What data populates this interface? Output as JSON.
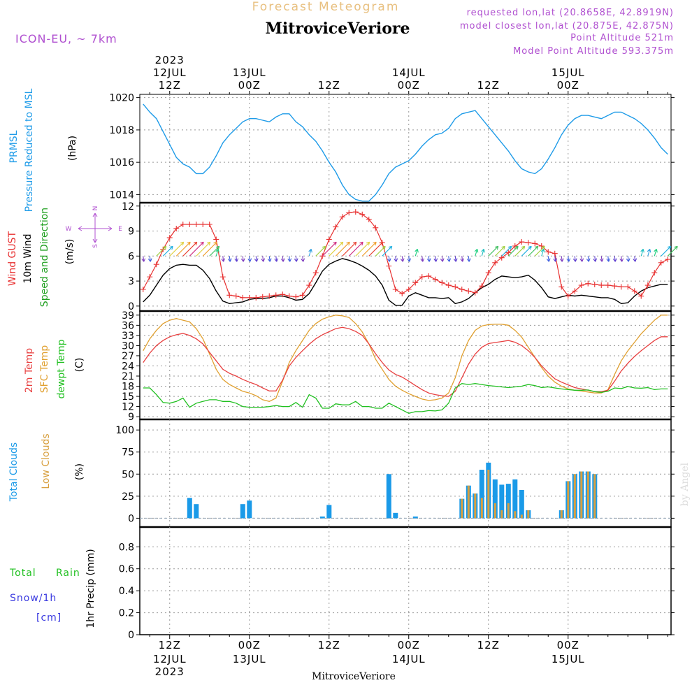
{
  "header": {
    "product": "Forecast Meteogram",
    "station": "MitroviceVeriore",
    "model": "ICON-EU, ~ 7km",
    "requested": "requested lon,lat (20.8658E, 42.8919N)",
    "closest": "model closest lon,lat (20.875E, 42.875N)",
    "altitude": "Point Altitude 521m",
    "model_altitude": "Model Point Altitude 593.375m",
    "credit": "by Angel",
    "footer_station": "MitroviceVeriore"
  },
  "time_axis": {
    "top_labels": [
      {
        "line1": "2023",
        "line2": "12JUL",
        "line3": "12Z",
        "t": 0
      },
      {
        "line1": "",
        "line2": "13JUL",
        "line3": "00Z",
        "t": 12
      },
      {
        "line1": "",
        "line2": "",
        "line3": "12Z",
        "t": 24
      },
      {
        "line1": "",
        "line2": "14JUL",
        "line3": "00Z",
        "t": 36
      },
      {
        "line1": "",
        "line2": "",
        "line3": "12Z",
        "t": 48
      },
      {
        "line1": "",
        "line2": "15JUL",
        "line3": "00Z",
        "t": 60
      }
    ],
    "bottom_labels": [
      {
        "line1": "12Z",
        "line2": "12JUL",
        "line3": "2023",
        "t": 0
      },
      {
        "line1": "00Z",
        "line2": "13JUL",
        "line3": "",
        "t": 12
      },
      {
        "line1": "12Z",
        "line2": "",
        "line3": "",
        "t": 24
      },
      {
        "line1": "00Z",
        "line2": "14JUL",
        "line3": "",
        "t": 36
      },
      {
        "line1": "12Z",
        "line2": "",
        "line3": "",
        "t": 48
      },
      {
        "line1": "00Z",
        "line2": "15JUL",
        "line3": "",
        "t": 60
      }
    ]
  },
  "labels": {
    "pressure": [
      "PRMSL",
      "Pressure Reduced to MSL"
    ],
    "pressure_unit": "(hPa)",
    "wind": [
      "Wind GUST",
      "10m Wind",
      "Speed and Direction"
    ],
    "wind_unit": "(m/s)",
    "compass": {
      "n": "N",
      "s": "S",
      "w": "W",
      "e": "E"
    },
    "temp": [
      "2m Temp",
      "SFC Temp",
      "dewpt Temp"
    ],
    "temp_unit": "(C)",
    "clouds": [
      "Total Clouds",
      "Low Clouds"
    ],
    "clouds_unit": "(%)",
    "precip_left": [
      "Total",
      "Rain",
      "Snow/1h",
      "[cm]"
    ],
    "precip_axis": "1hr Precip (mm)"
  },
  "colors": {
    "pressure": "#1e9be8",
    "gust": "#e83030",
    "wind": "#000000",
    "temp2m": "#e84040",
    "sfc": "#e0a030",
    "dewpt": "#20c020",
    "total_clouds": "#1a9ae8",
    "low_clouds": "#d8a040",
    "title": "#e8c080",
    "meta": "#b050d0",
    "snow": "#3a3ae0"
  },
  "chart_data": [
    {
      "type": "line",
      "name": "pressure",
      "ylim": [
        1013.5,
        1020.2
      ],
      "yticks": [
        1014,
        1016,
        1018,
        1020
      ],
      "x": [
        -4,
        -3,
        -2,
        -1,
        0,
        1,
        2,
        3,
        4,
        5,
        6,
        7,
        8,
        9,
        10,
        11,
        12,
        13,
        14,
        15,
        16,
        17,
        18,
        19,
        20,
        21,
        22,
        23,
        24,
        25,
        26,
        27,
        28,
        29,
        30,
        31,
        32,
        33,
        34,
        35,
        36,
        37,
        38,
        39,
        40,
        41,
        42,
        43,
        44,
        45,
        46,
        47,
        48,
        49,
        50,
        51,
        52,
        53,
        54,
        55,
        56,
        57,
        58,
        59,
        60,
        61,
        62,
        63,
        64,
        65,
        66,
        67,
        68,
        69,
        70,
        71,
        72,
        73,
        74,
        75
      ],
      "values": [
        1019.6,
        1019.1,
        1018.7,
        1017.9,
        1017.1,
        1016.3,
        1015.9,
        1015.7,
        1015.3,
        1015.3,
        1015.7,
        1016.4,
        1017.2,
        1017.7,
        1018.1,
        1018.5,
        1018.7,
        1018.7,
        1018.6,
        1018.5,
        1018.8,
        1019.0,
        1019.0,
        1018.5,
        1018.2,
        1017.7,
        1017.3,
        1016.7,
        1016.0,
        1015.4,
        1014.6,
        1014.0,
        1013.7,
        1013.6,
        1013.6,
        1014.0,
        1014.6,
        1015.3,
        1015.7,
        1015.9,
        1016.1,
        1016.5,
        1017.0,
        1017.4,
        1017.7,
        1017.8,
        1018.1,
        1018.7,
        1019.0,
        1019.1,
        1019.2,
        1018.7,
        1018.2,
        1017.7,
        1017.2,
        1016.7,
        1016.1,
        1015.6,
        1015.4,
        1015.3,
        1015.6,
        1016.2,
        1016.9,
        1017.7,
        1018.3,
        1018.7,
        1018.9,
        1018.9,
        1018.8,
        1018.7,
        1018.9,
        1019.1,
        1019.1,
        1018.9,
        1018.7,
        1018.4,
        1018.0,
        1017.5,
        1016.9,
        1016.5
      ]
    },
    {
      "type": "line",
      "name": "wind",
      "ylim": [
        -0.6,
        12.4
      ],
      "yticks": [
        0,
        3,
        6,
        9,
        12
      ],
      "x": [
        -4,
        -3,
        -2,
        -1,
        0,
        1,
        2,
        3,
        4,
        5,
        6,
        7,
        8,
        9,
        10,
        11,
        12,
        13,
        14,
        15,
        16,
        17,
        18,
        19,
        20,
        21,
        22,
        23,
        24,
        25,
        26,
        27,
        28,
        29,
        30,
        31,
        32,
        33,
        34,
        35,
        36,
        37,
        38,
        39,
        40,
        41,
        42,
        43,
        44,
        45,
        46,
        47,
        48,
        49,
        50,
        51,
        52,
        53,
        54,
        55,
        56,
        57,
        58,
        59,
        60,
        61,
        62,
        63,
        64,
        65,
        66,
        67,
        68,
        69,
        70,
        71,
        72,
        73,
        74,
        75
      ],
      "gust": [
        2.0,
        3.5,
        5.0,
        6.8,
        8.2,
        9.3,
        9.8,
        9.8,
        9.8,
        9.8,
        9.8,
        8.0,
        3.5,
        1.3,
        1.2,
        1.0,
        1.0,
        1.0,
        1.1,
        1.2,
        1.3,
        1.4,
        1.2,
        1.1,
        1.3,
        2.5,
        4.0,
        6.0,
        8.0,
        9.5,
        10.7,
        11.2,
        11.3,
        11.0,
        10.4,
        9.4,
        7.6,
        4.8,
        2.0,
        1.5,
        2.0,
        2.8,
        3.5,
        3.6,
        3.2,
        2.8,
        2.5,
        2.3,
        2.0,
        1.8,
        1.6,
        2.4,
        4.0,
        5.2,
        5.8,
        6.4,
        7.2,
        7.7,
        7.6,
        7.5,
        7.2,
        6.5,
        6.3,
        2.3,
        1.2,
        1.8,
        2.5,
        2.7,
        2.6,
        2.5,
        2.5,
        2.4,
        2.3,
        2.3,
        1.8,
        1.2,
        2.5,
        4.0,
        5.2,
        5.6
      ],
      "values": [
        0.5,
        1.3,
        2.5,
        3.7,
        4.5,
        4.9,
        5.0,
        4.9,
        4.9,
        4.3,
        3.3,
        1.8,
        0.6,
        0.3,
        0.4,
        0.5,
        0.8,
        0.9,
        0.9,
        1.0,
        1.2,
        1.2,
        1.0,
        0.7,
        0.8,
        1.5,
        2.8,
        4.2,
        5.0,
        5.4,
        5.7,
        5.5,
        5.2,
        4.8,
        4.3,
        3.6,
        2.5,
        0.7,
        0.1,
        0.1,
        1.2,
        1.6,
        1.3,
        1.0,
        1.0,
        0.9,
        1.0,
        0.3,
        0.5,
        0.9,
        1.6,
        2.2,
        2.6,
        3.2,
        3.6,
        3.5,
        3.4,
        3.5,
        3.7,
        3.1,
        2.2,
        1.1,
        0.9,
        1.1,
        1.3,
        1.2,
        1.3,
        1.2,
        1.1,
        1.0,
        1.0,
        0.8,
        0.3,
        0.4,
        1.2,
        1.8,
        2.2,
        2.4,
        2.6,
        2.6
      ]
    },
    {
      "type": "line",
      "name": "temperature",
      "ylim": [
        8.2,
        40.2
      ],
      "yticks": [
        9,
        12,
        15,
        18,
        21,
        24,
        27,
        30,
        33,
        36,
        39
      ],
      "x": [
        -4,
        -3,
        -2,
        -1,
        0,
        1,
        2,
        3,
        4,
        5,
        6,
        7,
        8,
        9,
        10,
        11,
        12,
        13,
        14,
        15,
        16,
        17,
        18,
        19,
        20,
        21,
        22,
        23,
        24,
        25,
        26,
        27,
        28,
        29,
        30,
        31,
        32,
        33,
        34,
        35,
        36,
        37,
        38,
        39,
        40,
        41,
        42,
        43,
        44,
        45,
        46,
        47,
        48,
        49,
        50,
        51,
        52,
        53,
        54,
        55,
        56,
        57,
        58,
        59,
        60,
        61,
        62,
        63,
        64,
        65,
        66,
        67,
        68,
        69,
        70,
        71,
        72,
        73,
        74,
        75
      ],
      "temp2m": [
        25.0,
        27.8,
        30.0,
        31.5,
        32.6,
        33.2,
        33.6,
        33.0,
        32.0,
        30.5,
        28.0,
        25.5,
        23.0,
        21.8,
        21.0,
        20.0,
        19.2,
        18.5,
        17.5,
        16.6,
        16.6,
        19.8,
        24.0,
        26.5,
        28.5,
        30.4,
        32.0,
        33.2,
        34.1,
        35.0,
        35.4,
        35.0,
        34.2,
        33.0,
        30.5,
        27.6,
        25.0,
        22.8,
        21.5,
        20.7,
        19.5,
        18.2,
        17.0,
        16.0,
        15.5,
        15.2,
        15.0,
        16.5,
        20.5,
        24.5,
        27.5,
        29.5,
        30.6,
        30.9,
        31.2,
        31.5,
        31.0,
        30.0,
        28.5,
        26.5,
        24.0,
        22.0,
        20.2,
        19.2,
        18.4,
        17.6,
        17.2,
        16.8,
        16.4,
        16.4,
        16.8,
        19.5,
        22.5,
        24.8,
        26.8,
        28.5,
        30.0,
        31.5,
        32.6,
        32.6
      ],
      "sfc": [
        28.5,
        32.0,
        34.5,
        36.5,
        37.5,
        38.0,
        37.5,
        37.0,
        35.0,
        32.0,
        27.5,
        23.0,
        20.0,
        18.5,
        17.5,
        16.5,
        16.0,
        15.2,
        14.0,
        13.5,
        14.5,
        19.5,
        25.0,
        28.5,
        31.5,
        34.5,
        36.5,
        37.8,
        38.5,
        39.0,
        38.8,
        38.3,
        36.5,
        34.0,
        30.5,
        26.0,
        23.0,
        20.0,
        18.0,
        16.8,
        15.8,
        15.0,
        14.2,
        13.8,
        14.0,
        14.5,
        16.0,
        20.5,
        27.0,
        31.5,
        34.5,
        35.8,
        36.2,
        36.3,
        36.3,
        36.0,
        34.5,
        32.5,
        29.5,
        26.5,
        23.5,
        21.0,
        19.2,
        18.0,
        17.2,
        16.8,
        16.6,
        16.3,
        16.0,
        16.0,
        17.0,
        21.5,
        25.5,
        28.5,
        31.0,
        33.5,
        35.5,
        37.5,
        39.0,
        39.0
      ],
      "dewpt": [
        17.5,
        17.5,
        15.5,
        13.2,
        13.0,
        13.5,
        14.5,
        11.8,
        13.0,
        13.5,
        14.0,
        14.0,
        13.5,
        13.5,
        13.0,
        12.0,
        11.8,
        11.8,
        11.8,
        12.0,
        12.3,
        12.0,
        12.0,
        13.2,
        11.8,
        15.5,
        14.5,
        11.5,
        11.5,
        12.8,
        12.5,
        12.5,
        13.5,
        12.0,
        12.0,
        11.5,
        11.5,
        13.0,
        12.0,
        11.0,
        10.0,
        10.5,
        10.5,
        10.8,
        10.7,
        11.0,
        13.0,
        17.5,
        18.8,
        18.5,
        18.8,
        18.5,
        18.2,
        18.0,
        17.8,
        17.6,
        17.8,
        18.0,
        18.5,
        18.2,
        17.6,
        17.8,
        17.5,
        17.2,
        17.0,
        16.8,
        16.8,
        16.9,
        16.4,
        16.2,
        16.5,
        17.5,
        17.3,
        17.9,
        17.5,
        17.4,
        17.6,
        17.0,
        17.2,
        17.2
      ]
    },
    {
      "type": "bar",
      "name": "clouds",
      "ylim": [
        -10,
        112
      ],
      "yticks": [
        0,
        25,
        50,
        75,
        100
      ],
      "total": [
        {
          "x": 3,
          "value": 23
        },
        {
          "x": 4,
          "value": 16
        },
        {
          "x": 11,
          "value": 16
        },
        {
          "x": 12,
          "value": 20
        },
        {
          "x": 23,
          "value": 2
        },
        {
          "x": 24,
          "value": 15
        },
        {
          "x": 33,
          "value": 50
        },
        {
          "x": 34,
          "value": 6
        },
        {
          "x": 37,
          "value": 2
        },
        {
          "x": 44,
          "value": 22
        },
        {
          "x": 45,
          "value": 37
        },
        {
          "x": 46,
          "value": 28
        },
        {
          "x": 47,
          "value": 55
        },
        {
          "x": 48,
          "value": 63
        },
        {
          "x": 49,
          "value": 44
        },
        {
          "x": 50,
          "value": 38
        },
        {
          "x": 51,
          "value": 39
        },
        {
          "x": 52,
          "value": 44
        },
        {
          "x": 53,
          "value": 32
        },
        {
          "x": 54,
          "value": 9
        },
        {
          "x": 59,
          "value": 9
        },
        {
          "x": 60,
          "value": 42
        },
        {
          "x": 61,
          "value": 50
        },
        {
          "x": 62,
          "value": 53
        },
        {
          "x": 63,
          "value": 53
        },
        {
          "x": 64,
          "value": 50
        }
      ],
      "low": [
        {
          "x": 44,
          "value": 22
        },
        {
          "x": 45,
          "value": 37
        },
        {
          "x": 46,
          "value": 28
        },
        {
          "x": 47,
          "value": 23
        },
        {
          "x": 48,
          "value": 55
        },
        {
          "x": 49,
          "value": 17
        },
        {
          "x": 50,
          "value": 9
        },
        {
          "x": 51,
          "value": 17
        },
        {
          "x": 52,
          "value": 8
        },
        {
          "x": 53,
          "value": 4
        },
        {
          "x": 54,
          "value": 9
        },
        {
          "x": 59,
          "value": 9
        },
        {
          "x": 60,
          "value": 42
        },
        {
          "x": 61,
          "value": 50
        },
        {
          "x": 62,
          "value": 53
        },
        {
          "x": 63,
          "value": 53
        },
        {
          "x": 64,
          "value": 50
        }
      ]
    },
    {
      "type": "bar",
      "name": "precip",
      "ylim": [
        0,
        0.98
      ],
      "yticks": [
        0,
        0.2,
        0.4,
        0.6,
        0.8
      ],
      "yticklabels": [
        "0",
        "0.2",
        "0.4",
        "0.6",
        "0.8"
      ],
      "values": []
    }
  ]
}
